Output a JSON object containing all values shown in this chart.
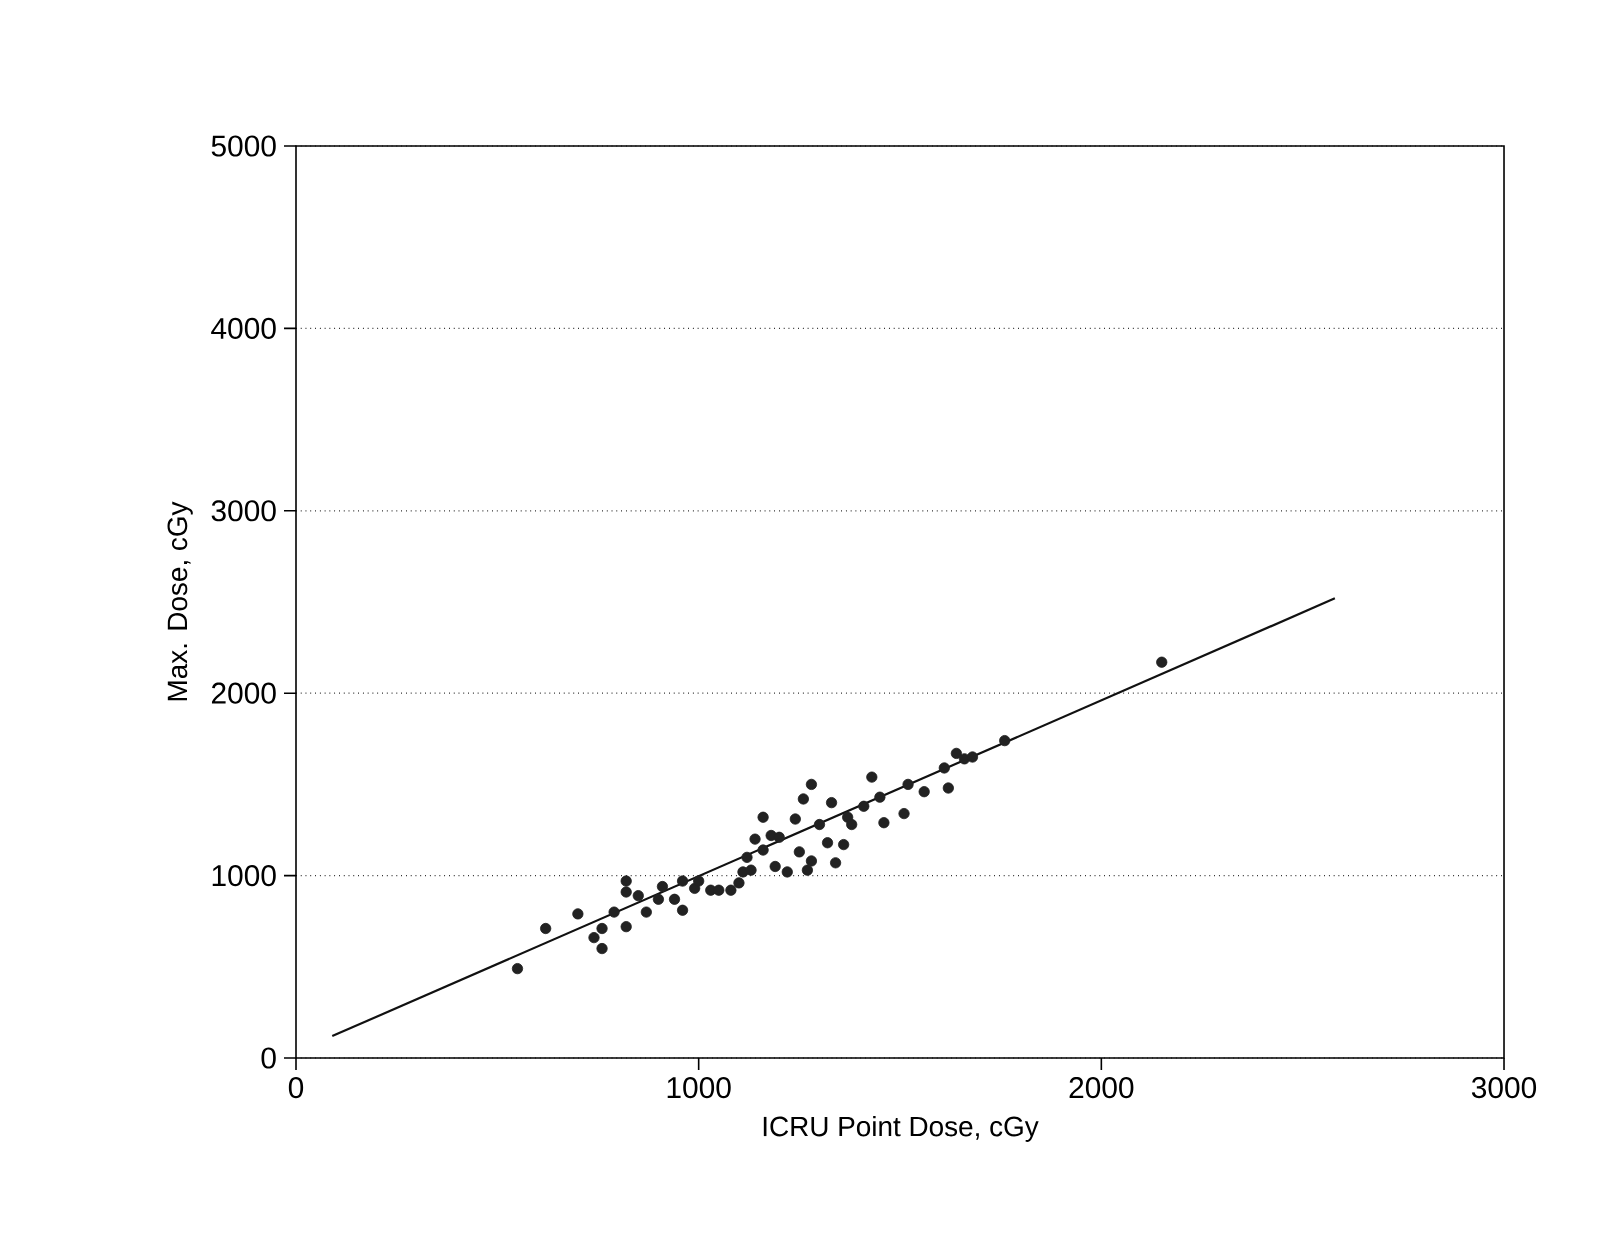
{
  "chart_data": {
    "type": "scatter",
    "xlabel": "ICRU Point Dose, cGy",
    "ylabel": "Max. Dose, cGy",
    "xlim": [
      0,
      3000
    ],
    "xticks": [
      0,
      1000,
      2000,
      3000
    ],
    "ylim": [
      0,
      5000
    ],
    "yticks": [
      0,
      1000,
      2000,
      3000,
      4000,
      5000
    ],
    "grid": "y",
    "series": [
      {
        "marker": "circle",
        "color": "#222222",
        "x": [
          550,
          620,
          700,
          740,
          760,
          760,
          790,
          820,
          820,
          820,
          850,
          870,
          900,
          910,
          940,
          960,
          960,
          990,
          1000,
          1030,
          1050,
          1080,
          1100,
          1110,
          1120,
          1130,
          1140,
          1160,
          1160,
          1180,
          1190,
          1200,
          1220,
          1240,
          1250,
          1260,
          1270,
          1280,
          1280,
          1300,
          1320,
          1330,
          1340,
          1360,
          1370,
          1380,
          1410,
          1430,
          1450,
          1460,
          1510,
          1520,
          1560,
          1610,
          1620,
          1640,
          1660,
          1680,
          1760,
          2150
        ],
        "values": [
          490,
          710,
          790,
          660,
          600,
          710,
          800,
          720,
          970,
          910,
          890,
          800,
          870,
          940,
          870,
          810,
          970,
          930,
          970,
          920,
          920,
          920,
          960,
          1020,
          1100,
          1030,
          1200,
          1320,
          1140,
          1220,
          1050,
          1210,
          1020,
          1310,
          1130,
          1420,
          1030,
          1500,
          1080,
          1280,
          1180,
          1400,
          1070,
          1170,
          1320,
          1280,
          1380,
          1540,
          1430,
          1290,
          1340,
          1500,
          1460,
          1590,
          1480,
          1670,
          1640,
          1650,
          1740,
          2170
        ]
      },
      {
        "type": "line",
        "marker": "none",
        "line_style": "solid",
        "color": "#111111",
        "x": [
          90,
          2580
        ],
        "values": [
          120,
          2520
        ]
      }
    ]
  }
}
